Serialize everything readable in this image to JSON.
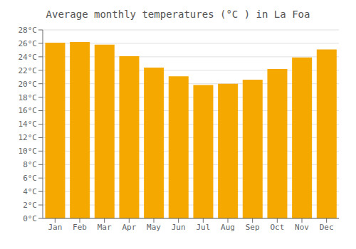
{
  "chart_data": {
    "type": "bar",
    "title": "Average monthly temperatures (°C ) in La Foa",
    "categories": [
      "Jan",
      "Feb",
      "Mar",
      "Apr",
      "May",
      "Jun",
      "Jul",
      "Aug",
      "Sep",
      "Oct",
      "Nov",
      "Dec"
    ],
    "values": [
      26.1,
      26.2,
      25.8,
      24.1,
      22.4,
      21.1,
      19.8,
      20.0,
      20.6,
      22.2,
      23.9,
      25.1
    ],
    "color": "#F5A800",
    "ylim": [
      0,
      28
    ],
    "yticks": [
      {
        "value": 0,
        "label": "0°C"
      },
      {
        "value": 2,
        "label": "2°C"
      },
      {
        "value": 4,
        "label": "4°C"
      },
      {
        "value": 6,
        "label": "6°C"
      },
      {
        "value": 8,
        "label": "8°C"
      },
      {
        "value": 10,
        "label": "10°C"
      },
      {
        "value": 12,
        "label": "12°C"
      },
      {
        "value": 14,
        "label": "14°C"
      },
      {
        "value": 16,
        "label": "16°C"
      },
      {
        "value": 18,
        "label": "18°C"
      },
      {
        "value": 20,
        "label": "20°C"
      },
      {
        "value": 22,
        "label": "22°C"
      },
      {
        "value": 24,
        "label": "24°C"
      },
      {
        "value": 26,
        "label": "26°C"
      },
      {
        "value": 28,
        "label": "28°C"
      }
    ],
    "grid": true
  }
}
